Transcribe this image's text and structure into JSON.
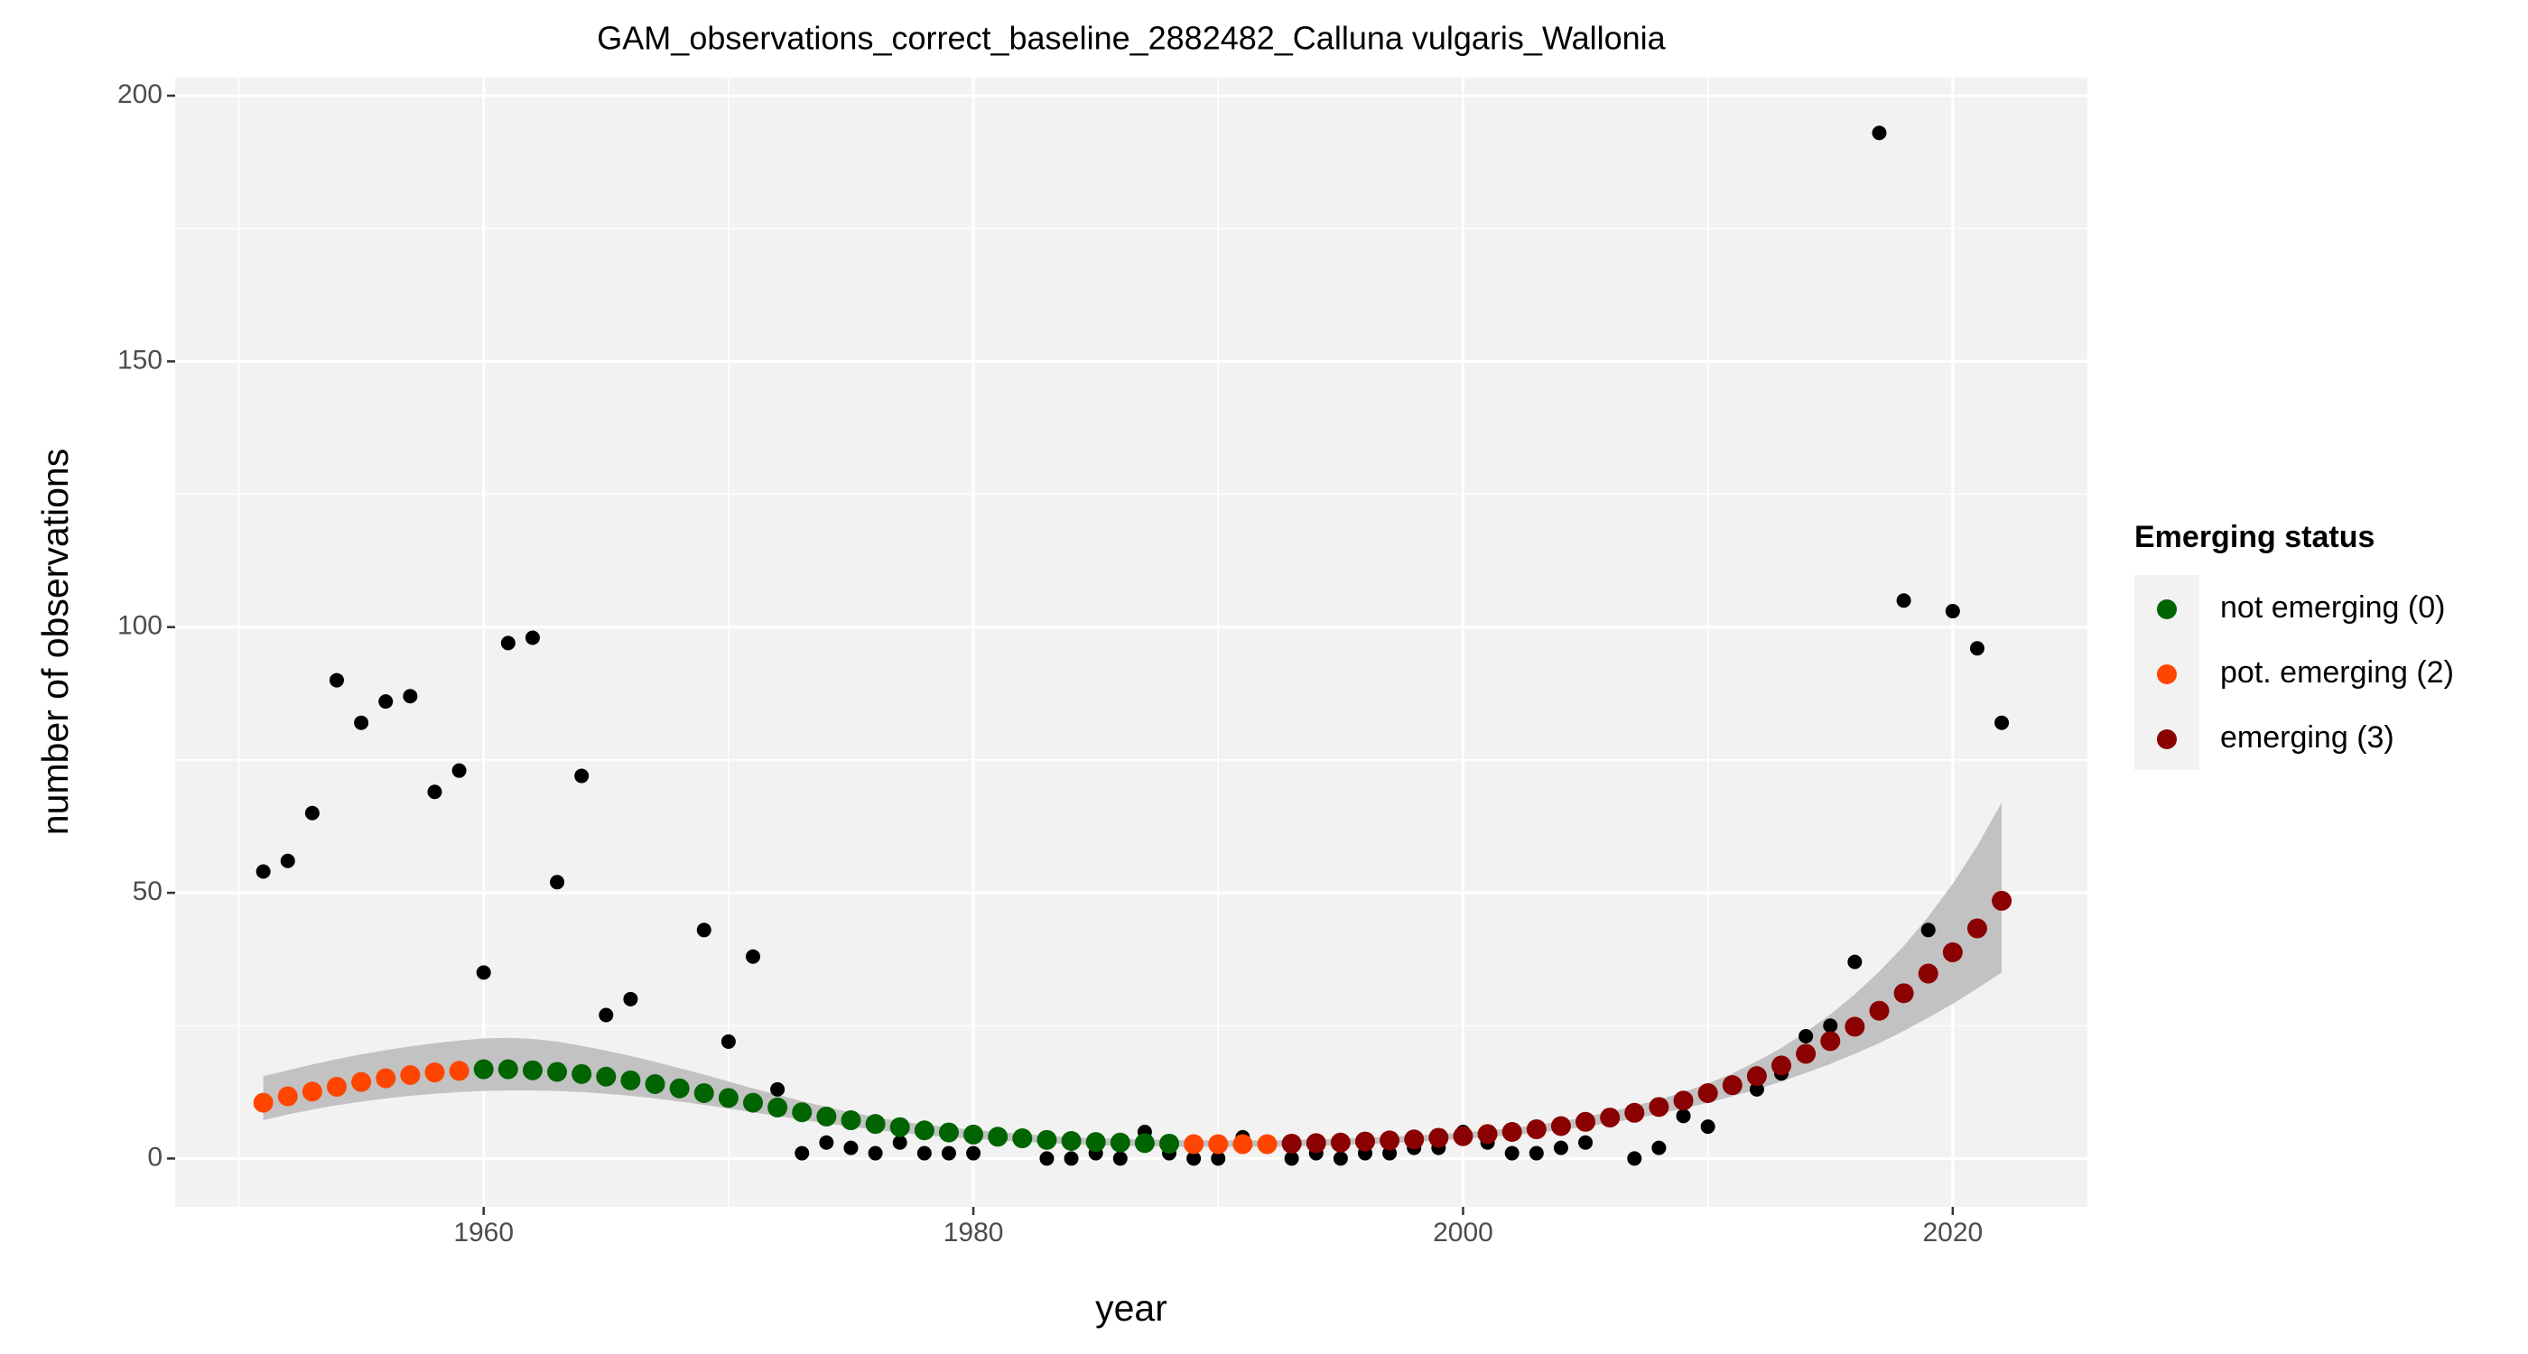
{
  "chart_data": {
    "type": "scatter",
    "title": "GAM_observations_correct_baseline_2882482_Calluna vulgaris_Wallonia",
    "x_label": "year",
    "y_label": "number of observations",
    "legend_title": "Emerging status",
    "legend_position": "right",
    "legend": [
      {
        "code": 0,
        "label": "not emerging (0)",
        "color": "#006400"
      },
      {
        "code": 2,
        "label": "pot. emerging (2)",
        "color": "#FF4500"
      },
      {
        "code": 3,
        "label": "emerging (3)",
        "color": "#8B0000"
      }
    ],
    "observed_color": "#000000",
    "band_color": "#c2c2c2",
    "grid": true,
    "xlim": [
      1947.4,
      2025.5
    ],
    "ylim": [
      -9.1,
      203.4
    ],
    "xticks": [
      1960,
      1980,
      2000,
      2020
    ],
    "yticks": [
      0,
      50,
      100,
      150,
      200
    ],
    "x": [
      1951,
      1952,
      1953,
      1954,
      1955,
      1956,
      1957,
      1958,
      1959,
      1960,
      1961,
      1962,
      1963,
      1964,
      1965,
      1966,
      1967,
      1968,
      1969,
      1970,
      1971,
      1972,
      1973,
      1974,
      1975,
      1976,
      1977,
      1978,
      1979,
      1980,
      1981,
      1982,
      1983,
      1984,
      1985,
      1986,
      1987,
      1988,
      1989,
      1990,
      1991,
      1992,
      1993,
      1994,
      1995,
      1996,
      1997,
      1998,
      1999,
      2000,
      2001,
      2002,
      2003,
      2004,
      2005,
      2006,
      2007,
      2008,
      2009,
      2010,
      2011,
      2012,
      2013,
      2014,
      2015,
      2016,
      2017,
      2018,
      2019,
      2020,
      2021,
      2022
    ],
    "observed": [
      54,
      56,
      65,
      90,
      82,
      86,
      87,
      69,
      73,
      35,
      97,
      98,
      52,
      72,
      27,
      30,
      null,
      null,
      43,
      22,
      38,
      13,
      1,
      3,
      2,
      1,
      3,
      1,
      1,
      1,
      null,
      null,
      0,
      0,
      1,
      0,
      5,
      1,
      0,
      0,
      4,
      null,
      0,
      1,
      0,
      1,
      1,
      2,
      2,
      5,
      3,
      1,
      1,
      2,
      3,
      null,
      0,
      2,
      8,
      6,
      null,
      13,
      16,
      23,
      25,
      37,
      193,
      105,
      43,
      103,
      96,
      82
    ],
    "fitted": [
      10.5,
      11.7,
      12.6,
      13.5,
      14.4,
      15.1,
      15.7,
      16.2,
      16.5,
      16.8,
      16.8,
      16.6,
      16.3,
      15.9,
      15.4,
      14.7,
      14.0,
      13.2,
      12.3,
      11.4,
      10.5,
      9.6,
      8.7,
      7.9,
      7.2,
      6.5,
      5.9,
      5.3,
      4.9,
      4.5,
      4.1,
      3.8,
      3.5,
      3.3,
      3.1,
      3.0,
      2.9,
      2.8,
      2.7,
      2.7,
      2.7,
      2.7,
      2.8,
      2.9,
      3.0,
      3.2,
      3.4,
      3.6,
      3.9,
      4.2,
      4.6,
      5.0,
      5.5,
      6.1,
      6.9,
      7.7,
      8.6,
      9.7,
      10.9,
      12.3,
      13.8,
      15.5,
      17.5,
      19.7,
      22.1,
      24.8,
      27.8,
      31.1,
      34.8,
      38.8,
      43.3,
      48.5
    ],
    "ci_lower": [
      7.2,
      8.3,
      9.2,
      10.0,
      10.7,
      11.3,
      11.8,
      12.2,
      12.5,
      12.7,
      12.8,
      12.8,
      12.7,
      12.5,
      12.2,
      11.8,
      11.3,
      10.7,
      10.1,
      9.4,
      8.7,
      8.0,
      7.3,
      6.6,
      6.0,
      5.4,
      4.9,
      4.4,
      4.0,
      3.7,
      3.4,
      3.1,
      2.9,
      2.7,
      2.5,
      2.4,
      2.3,
      2.2,
      2.2,
      2.2,
      2.2,
      2.2,
      2.3,
      2.4,
      2.5,
      2.7,
      2.9,
      3.1,
      3.4,
      3.7,
      4.0,
      4.4,
      4.8,
      5.4,
      6.0,
      6.7,
      7.5,
      8.4,
      9.4,
      10.5,
      11.7,
      13.0,
      14.5,
      16.1,
      17.8,
      19.7,
      21.7,
      24.0,
      26.5,
      29.1,
      32.0,
      35.0
    ],
    "ci_upper": [
      15.5,
      16.6,
      17.7,
      18.7,
      19.6,
      20.4,
      21.1,
      21.7,
      22.2,
      22.6,
      22.7,
      22.5,
      22.0,
      21.2,
      20.3,
      19.3,
      18.2,
      17.0,
      15.8,
      14.5,
      13.2,
      12.0,
      10.8,
      9.7,
      8.7,
      7.8,
      7.0,
      6.4,
      5.9,
      5.4,
      5.0,
      4.6,
      4.3,
      4.0,
      3.8,
      3.7,
      3.6,
      3.5,
      3.4,
      3.4,
      3.4,
      3.4,
      3.5,
      3.6,
      3.7,
      3.9,
      4.1,
      4.3,
      4.6,
      4.9,
      5.3,
      5.7,
      6.3,
      7.0,
      7.8,
      8.8,
      9.9,
      11.1,
      12.5,
      14.1,
      16.0,
      18.3,
      20.8,
      23.8,
      27.1,
      30.9,
      35.2,
      40.0,
      45.5,
      51.7,
      58.8,
      67.0
    ],
    "status": [
      2,
      2,
      2,
      2,
      2,
      2,
      2,
      2,
      2,
      0,
      0,
      0,
      0,
      0,
      0,
      0,
      0,
      0,
      0,
      0,
      0,
      0,
      0,
      0,
      0,
      0,
      0,
      0,
      0,
      0,
      0,
      0,
      0,
      0,
      0,
      0,
      0,
      0,
      2,
      2,
      2,
      2,
      3,
      3,
      3,
      3,
      3,
      3,
      3,
      3,
      3,
      3,
      3,
      3,
      3,
      3,
      3,
      3,
      3,
      3,
      3,
      3,
      3,
      3,
      3,
      3,
      3,
      3,
      3,
      3,
      3,
      3
    ]
  }
}
